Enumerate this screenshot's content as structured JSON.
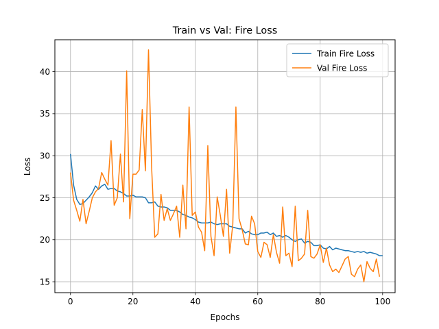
{
  "chart_data": {
    "type": "line",
    "title": "Train vs Val: Fire Loss",
    "xlabel": "Epochs",
    "ylabel": "Loss",
    "xlim": [
      -5,
      104
    ],
    "ylim": [
      13.7,
      43.8
    ],
    "xticks": [
      0,
      20,
      40,
      60,
      80,
      100
    ],
    "yticks": [
      15,
      20,
      25,
      30,
      35,
      40
    ],
    "grid": true,
    "legend_position": "top-right",
    "series": [
      {
        "name": "Train Fire Loss",
        "color": "#1f77b4",
        "values": [
          30.2,
          26.5,
          24.8,
          24.2,
          24.3,
          24.7,
          25.1,
          25.6,
          26.4,
          26.0,
          26.4,
          26.6,
          26.0,
          26.1,
          26.1,
          25.8,
          25.7,
          25.5,
          25.2,
          25.2,
          25.3,
          25.1,
          25.1,
          25.1,
          25.0,
          24.4,
          24.4,
          24.5,
          24.0,
          23.9,
          23.9,
          23.8,
          23.5,
          23.5,
          23.5,
          23.3,
          23.0,
          22.9,
          22.7,
          22.6,
          22.4,
          22.1,
          22.0,
          22.0,
          22.0,
          22.1,
          21.9,
          21.8,
          21.9,
          21.9,
          21.9,
          21.6,
          21.5,
          21.4,
          21.3,
          21.3,
          20.8,
          21.0,
          20.7,
          20.6,
          20.6,
          20.8,
          20.8,
          20.9,
          20.6,
          20.8,
          20.4,
          20.5,
          20.3,
          20.5,
          20.3,
          20.0,
          19.8,
          20.0,
          20.1,
          19.6,
          19.8,
          19.7,
          19.3,
          19.3,
          19.4,
          19.0,
          18.9,
          19.2,
          18.8,
          19.0,
          18.9,
          18.8,
          18.7,
          18.7,
          18.6,
          18.5,
          18.6,
          18.5,
          18.6,
          18.4,
          18.5,
          18.4,
          18.3,
          18.1,
          18.1
        ]
      },
      {
        "name": "Val Fire Loss",
        "color": "#ff7f0e",
        "values": [
          28.0,
          24.7,
          23.5,
          22.2,
          24.8,
          21.9,
          23.4,
          25.0,
          25.7,
          26.1,
          28.0,
          27.2,
          26.5,
          31.8,
          24.1,
          25.0,
          30.2,
          24.5,
          40.1,
          22.5,
          27.8,
          27.8,
          28.3,
          35.5,
          28.2,
          42.6,
          28.6,
          20.3,
          20.7,
          25.4,
          22.3,
          23.7,
          22.3,
          23.1,
          24.0,
          20.3,
          26.5,
          21.3,
          35.8,
          22.9,
          23.3,
          21.5,
          20.9,
          18.7,
          31.2,
          20.4,
          18.1,
          25.1,
          22.9,
          20.4,
          26.0,
          18.4,
          21.8,
          35.8,
          22.5,
          21.2,
          19.5,
          19.4,
          22.8,
          21.9,
          18.6,
          17.9,
          19.7,
          19.4,
          17.9,
          20.6,
          18.5,
          17.2,
          23.9,
          18.1,
          18.4,
          16.8,
          24.0,
          17.5,
          17.8,
          18.3,
          23.5,
          18.0,
          17.8,
          18.3,
          19.4,
          17.3,
          19.0,
          17.0,
          16.2,
          16.5,
          16.1,
          16.9,
          17.7,
          18.0,
          15.9,
          15.6,
          16.5,
          17.0,
          15.0,
          17.4,
          16.6,
          16.2,
          17.7,
          15.6
        ]
      }
    ]
  }
}
